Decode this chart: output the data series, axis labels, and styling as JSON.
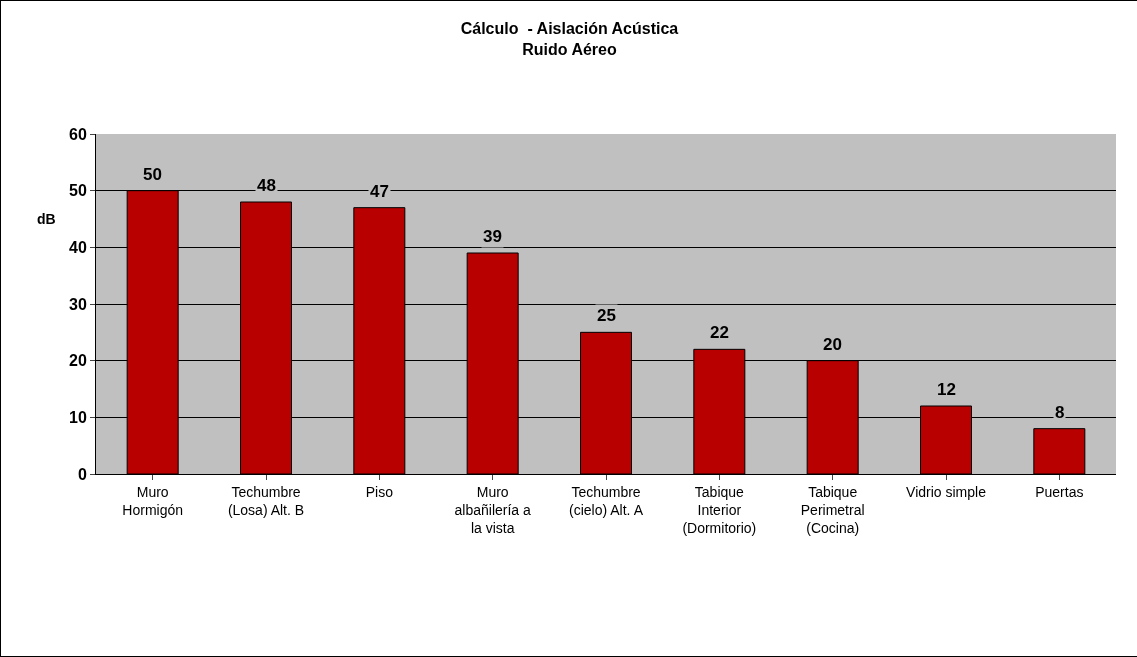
{
  "chart_data": {
    "type": "bar",
    "title": "Cálculo  - Aislación Acústica\nRuido Aéreo",
    "ylabel": "dB",
    "categories": [
      "Muro\nHormigón",
      "Techumbre\n(Losa) Alt. B",
      "Piso",
      "Muro\nalbañilería a\nla vista",
      "Techumbre\n(cielo) Alt. A",
      "Tabique\nInterior\n(Dormitorio)",
      "Tabique\nPerimetral\n(Cocina)",
      "Vidrio simple",
      "Puertas"
    ],
    "values": [
      50,
      48,
      47,
      39,
      25,
      22,
      20,
      12,
      8
    ],
    "color": "#b80000",
    "ylim": [
      0,
      60
    ],
    "yticks": [
      0,
      10,
      20,
      30,
      40,
      50,
      60
    ],
    "grid": "y",
    "data_labels": true,
    "legend": false
  }
}
